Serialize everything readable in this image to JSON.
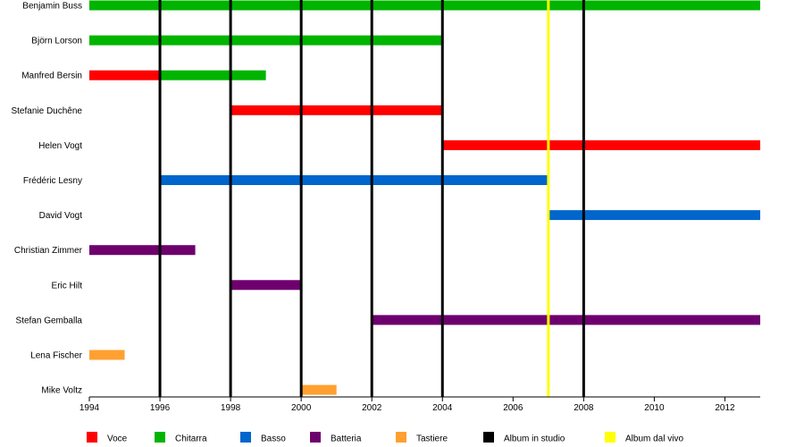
{
  "chart_data": {
    "type": "timeline",
    "title": "",
    "xlabel": "",
    "ylabel": "",
    "x_range": [
      1994,
      2013
    ],
    "x_ticks": [
      "1994",
      "1996",
      "1998",
      "2000",
      "2002",
      "2004",
      "2006",
      "2008",
      "2010",
      "2012"
    ],
    "colors": {
      "voce": "#ff0000",
      "chitarra": "#00b400",
      "basso": "#0066cc",
      "batteria": "#6e006e",
      "tastiere": "#ffa031",
      "studio": "#000000",
      "live": "#ffff00"
    },
    "members": [
      {
        "name": "Benjamin Buss",
        "bars": [
          {
            "role": "chitarra",
            "start": 1994,
            "end": 2013
          }
        ]
      },
      {
        "name": "Björn Lorson",
        "bars": [
          {
            "role": "chitarra",
            "start": 1994,
            "end": 2004
          }
        ]
      },
      {
        "name": "Manfred Bersin",
        "bars": [
          {
            "role": "voce",
            "start": 1994,
            "end": 1996
          },
          {
            "role": "chitarra",
            "start": 1996,
            "end": 1999
          }
        ]
      },
      {
        "name": "Stefanie Duchêne",
        "bars": [
          {
            "role": "voce",
            "start": 1998,
            "end": 2004
          }
        ]
      },
      {
        "name": "Helen Vogt",
        "bars": [
          {
            "role": "voce",
            "start": 2004,
            "end": 2013
          }
        ]
      },
      {
        "name": "Frédéric Lesny",
        "bars": [
          {
            "role": "basso",
            "start": 1996,
            "end": 2007
          }
        ]
      },
      {
        "name": "David Vogt",
        "bars": [
          {
            "role": "basso",
            "start": 2007,
            "end": 2013
          }
        ]
      },
      {
        "name": "Christian Zimmer",
        "bars": [
          {
            "role": "batteria",
            "start": 1994,
            "end": 1997
          }
        ]
      },
      {
        "name": "Eric Hilt",
        "bars": [
          {
            "role": "batteria",
            "start": 1998,
            "end": 2000
          }
        ]
      },
      {
        "name": "Stefan Gemballa",
        "bars": [
          {
            "role": "batteria",
            "start": 2002,
            "end": 2013
          }
        ]
      },
      {
        "name": "Lena Fischer",
        "bars": [
          {
            "role": "tastiere",
            "start": 1994,
            "end": 1995
          }
        ]
      },
      {
        "name": "Mike Voltz",
        "bars": [
          {
            "role": "tastiere",
            "start": 2000,
            "end": 2001
          }
        ]
      }
    ],
    "events": [
      {
        "type": "studio",
        "year": 1996
      },
      {
        "type": "studio",
        "year": 1998
      },
      {
        "type": "studio",
        "year": 2000
      },
      {
        "type": "studio",
        "year": 2002
      },
      {
        "type": "studio",
        "year": 2004
      },
      {
        "type": "studio",
        "year": 2008
      },
      {
        "type": "live",
        "year": 2007
      }
    ],
    "legend": [
      {
        "key": "voce",
        "label": "Voce"
      },
      {
        "key": "chitarra",
        "label": "Chitarra"
      },
      {
        "key": "basso",
        "label": "Basso"
      },
      {
        "key": "batteria",
        "label": "Batteria"
      },
      {
        "key": "tastiere",
        "label": "Tastiere"
      },
      {
        "key": "studio",
        "label": "Album in studio"
      },
      {
        "key": "live",
        "label": "Album dal vivo"
      }
    ],
    "legend_position": "bottom"
  }
}
